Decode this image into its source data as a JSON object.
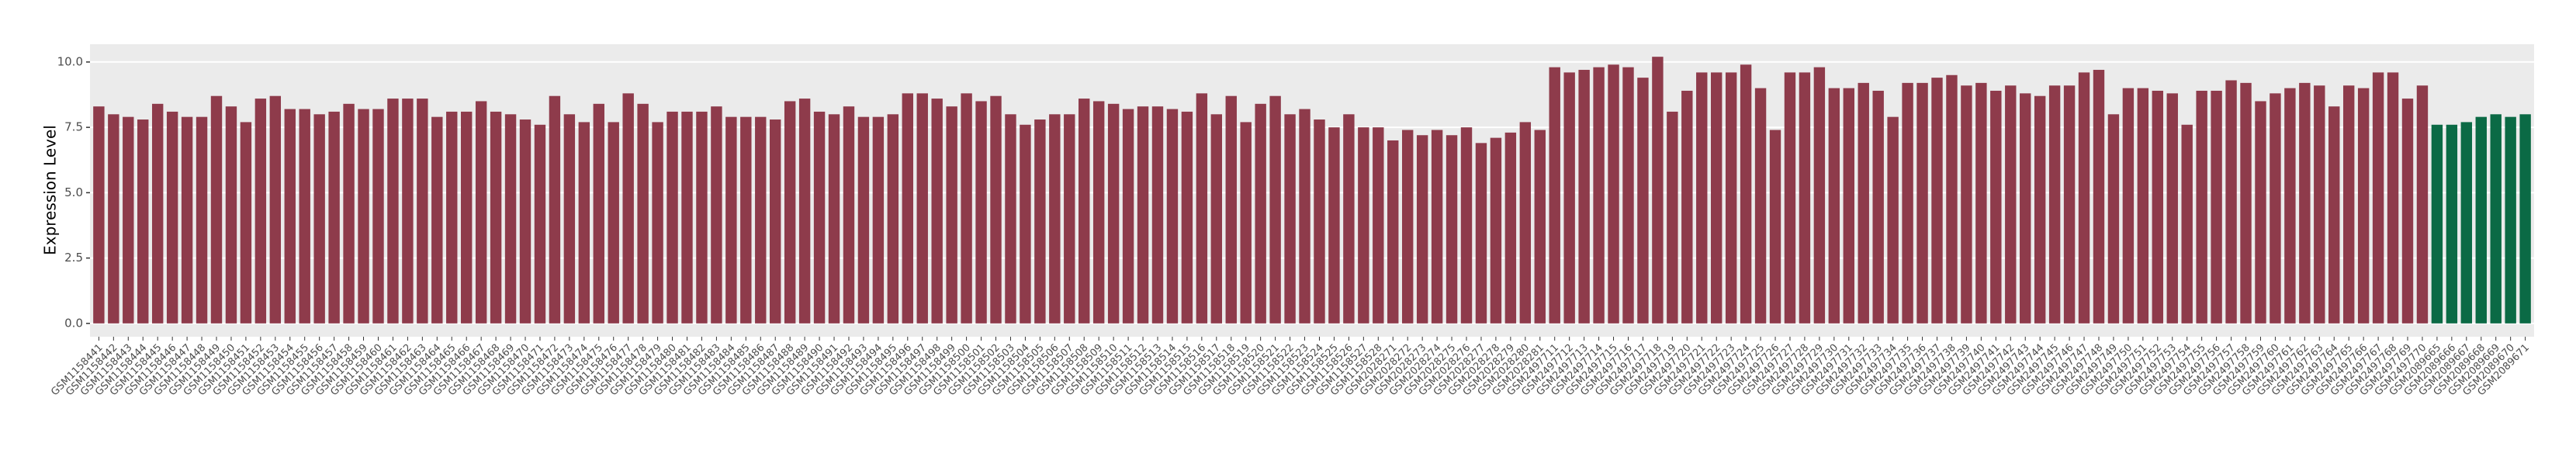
{
  "chart_data": {
    "type": "bar",
    "y_label": "Expression Level",
    "ylim": [
      -0.51,
      10.68
    ],
    "yticks": [
      {
        "value": 0,
        "label": "0.0"
      },
      2.5,
      {
        "value": 5,
        "label": "5.0"
      },
      7.5,
      {
        "value": 10,
        "label": "10.0"
      }
    ],
    "grid": true,
    "groups": [
      {
        "color": "#8e3b4b",
        "categories": [
          "GSM1158441",
          "GSM1158442",
          "GSM1158443",
          "GSM1158444",
          "GSM1158445",
          "GSM1158446",
          "GSM1158447",
          "GSM1158448",
          "GSM1158449",
          "GSM1158450",
          "GSM1158451",
          "GSM1158452",
          "GSM1158453",
          "GSM1158454",
          "GSM1158455",
          "GSM1158456",
          "GSM1158457",
          "GSM1158458",
          "GSM1158459",
          "GSM1158460",
          "GSM1158461",
          "GSM1158462",
          "GSM1158463",
          "GSM1158464",
          "GSM1158465",
          "GSM1158466",
          "GSM1158467",
          "GSM1158468",
          "GSM1158469",
          "GSM1158470",
          "GSM1158471",
          "GSM1158472",
          "GSM1158473",
          "GSM1158474",
          "GSM1158475",
          "GSM1158476",
          "GSM1158477",
          "GSM1158478",
          "GSM1158479",
          "GSM1158480",
          "GSM1158481",
          "GSM1158482",
          "GSM1158483",
          "GSM1158484",
          "GSM1158485",
          "GSM1158486",
          "GSM1158487",
          "GSM1158488",
          "GSM1158489",
          "GSM1158490",
          "GSM1158491",
          "GSM1158492",
          "GSM1158493",
          "GSM1158494",
          "GSM1158495",
          "GSM1158496",
          "GSM1158497",
          "GSM1158498",
          "GSM1158499",
          "GSM1158500",
          "GSM1158501",
          "GSM1158502",
          "GSM1158503",
          "GSM1158504",
          "GSM1158505",
          "GSM1158506",
          "GSM1158507",
          "GSM1158508",
          "GSM1158509",
          "GSM1158510",
          "GSM1158511",
          "GSM1158512",
          "GSM1158513",
          "GSM1158514",
          "GSM1158515",
          "GSM1158516",
          "GSM1158517",
          "GSM1158518",
          "GSM1158519",
          "GSM1158520",
          "GSM1158521",
          "GSM1158522",
          "GSM1158523",
          "GSM1158524",
          "GSM1158525",
          "GSM1158526",
          "GSM1158527",
          "GSM1158528",
          "GSM2028271",
          "GSM2028272",
          "GSM2028273",
          "GSM2028274",
          "GSM2028275",
          "GSM2028276",
          "GSM2028277",
          "GSM2028278",
          "GSM2028279",
          "GSM2028280",
          "GSM2028281",
          "GSM2497711",
          "GSM2497712",
          "GSM2497713",
          "GSM2497714",
          "GSM2497715",
          "GSM2497716",
          "GSM2497717",
          "GSM2497718",
          "GSM2497719",
          "GSM2497720",
          "GSM2497721",
          "GSM2497722",
          "GSM2497723",
          "GSM2497724",
          "GSM2497725",
          "GSM2497726",
          "GSM2497727",
          "GSM2497728",
          "GSM2497729",
          "GSM2497730",
          "GSM2497731",
          "GSM2497732",
          "GSM2497733",
          "GSM2497734",
          "GSM2497735",
          "GSM2497736",
          "GSM2497737",
          "GSM2497738",
          "GSM2497739",
          "GSM2497740",
          "GSM2497741",
          "GSM2497742",
          "GSM2497743",
          "GSM2497744",
          "GSM2497745",
          "GSM2497746",
          "GSM2497747",
          "GSM2497748",
          "GSM2497749",
          "GSM2497750",
          "GSM2497751",
          "GSM2497752",
          "GSM2497753",
          "GSM2497754",
          "GSM2497755",
          "GSM2497756",
          "GSM2497757",
          "GSM2497758",
          "GSM2497759",
          "GSM2497760",
          "GSM2497761",
          "GSM2497762",
          "GSM2497763",
          "GSM2497764",
          "GSM2497765",
          "GSM2497766",
          "GSM2497767",
          "GSM2497768",
          "GSM2497769",
          "GSM2497770"
        ],
        "values": [
          8.3,
          8.0,
          7.9,
          7.8,
          8.4,
          8.1,
          7.9,
          7.9,
          8.7,
          8.3,
          7.7,
          8.6,
          8.7,
          8.2,
          8.2,
          8.0,
          8.1,
          8.4,
          8.2,
          8.2,
          8.6,
          8.6,
          8.6,
          7.9,
          8.1,
          8.1,
          8.5,
          8.1,
          8.0,
          7.8,
          7.6,
          8.7,
          8.0,
          7.7,
          8.4,
          7.7,
          8.8,
          8.4,
          7.7,
          8.1,
          8.1,
          8.1,
          8.3,
          7.9,
          7.9,
          7.9,
          7.8,
          8.5,
          8.6,
          8.1,
          8.0,
          8.3,
          7.9,
          7.9,
          8.0,
          8.8,
          8.8,
          8.6,
          8.3,
          8.8,
          8.5,
          8.7,
          8.0,
          7.6,
          7.8,
          8.0,
          8.0,
          8.6,
          8.5,
          8.4,
          8.2,
          8.3,
          8.3,
          8.2,
          8.1,
          8.8,
          8.0,
          8.7,
          7.7,
          8.4,
          8.7,
          8.0,
          8.2,
          7.8,
          7.5,
          8.0,
          7.5,
          7.5,
          7.0,
          7.4,
          7.2,
          7.4,
          7.2,
          7.5,
          6.9,
          7.1,
          7.3,
          7.7,
          7.4,
          9.8,
          9.6,
          9.7,
          9.8,
          9.9,
          9.8,
          9.4,
          10.2,
          8.1,
          8.9,
          9.6,
          9.6,
          9.6,
          9.9,
          9.0,
          7.4,
          9.6,
          9.6,
          9.8,
          9.0,
          9.0,
          9.2,
          8.9,
          7.9,
          9.2,
          9.2,
          9.4,
          9.5,
          9.1,
          9.2,
          8.9,
          9.1,
          8.8,
          8.7,
          9.1,
          9.1,
          9.6,
          9.7,
          8.0,
          9.0,
          9.0,
          8.9,
          8.8,
          7.6,
          8.9,
          8.9,
          9.3,
          9.2,
          8.5,
          8.8,
          9.0,
          9.2,
          9.1,
          8.3,
          9.1,
          9.0,
          9.6,
          9.6,
          8.6,
          9.1
        ]
      },
      {
        "color": "#0b6a45",
        "categories": [
          "GSM2089665",
          "GSM2089666",
          "GSM2089667",
          "GSM2089668",
          "GSM2089669",
          "GSM2089670",
          "GSM2089671"
        ],
        "values": [
          7.6,
          7.6,
          7.7,
          7.9,
          8.0,
          7.9,
          8.0
        ]
      }
    ]
  }
}
